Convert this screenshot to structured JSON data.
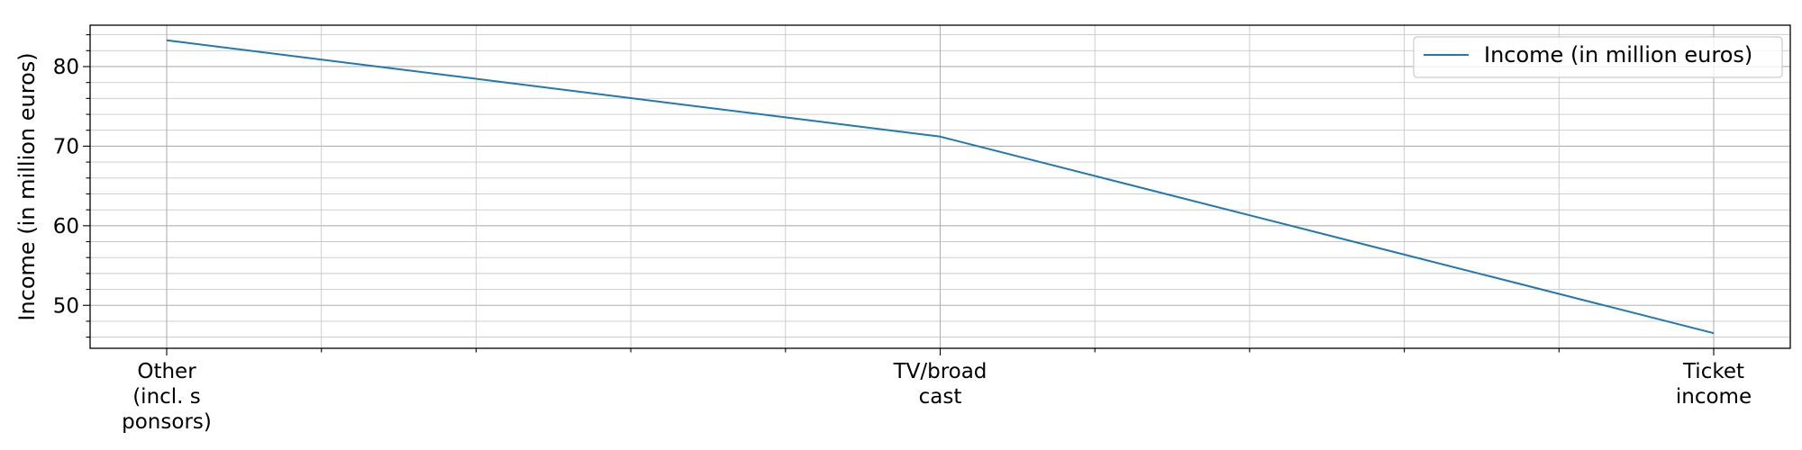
{
  "chart_data": {
    "type": "line",
    "categories": [
      "Other\n(incl. s\nponsors)",
      "TV/broad\ncast",
      "Ticket\nincome"
    ],
    "series": [
      {
        "name": "Income (in million euros)",
        "values": [
          83.3,
          71.2,
          46.5
        ],
        "color": "#1f77b4"
      }
    ],
    "xlabel": "",
    "ylabel": "Income (in million euros)",
    "ylim": [
      44.6,
      85.2
    ],
    "y_major_ticks": [
      50,
      60,
      70,
      80
    ],
    "y_minor_step": 2,
    "x_minor_divisions": 5,
    "grid": true,
    "legend_position": "upper right"
  }
}
